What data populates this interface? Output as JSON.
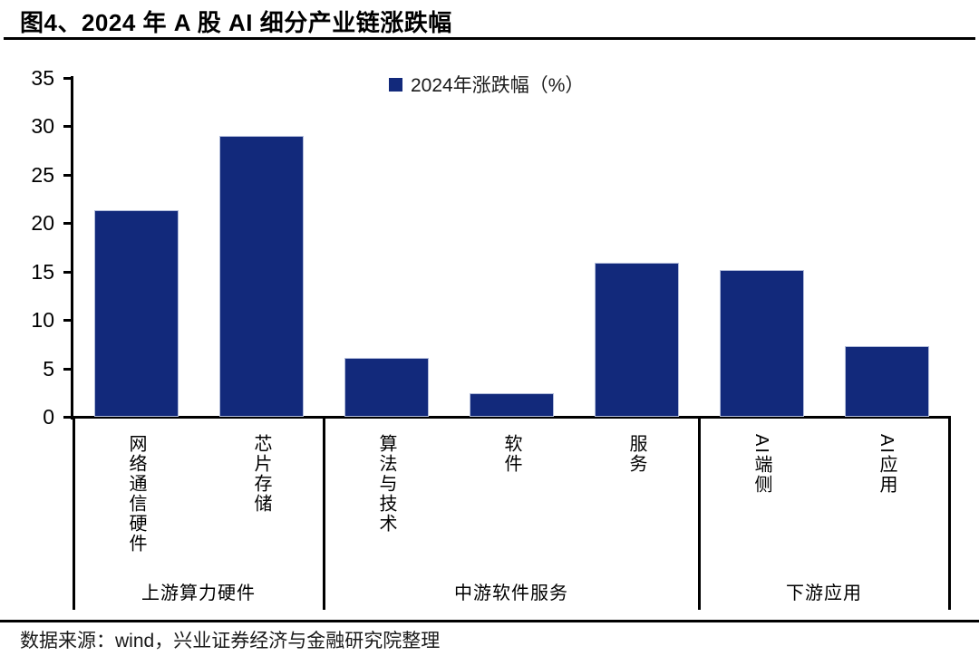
{
  "title": "图4、2024 年 A 股 AI 细分产业链涨跌幅",
  "source_note": "数据来源：wind，兴业证券经济与金融研究院整理",
  "colors": {
    "bar": "#12297B",
    "bar_edge": "#BCC4DF",
    "axis": "#000000",
    "background": "#FFFFFF"
  },
  "chart_data": {
    "type": "bar",
    "title": "图4、2024 年 A 股 AI 细分产业链涨跌幅",
    "legend": [
      {
        "label": "2024年涨跌幅（%）",
        "color": "#12297B"
      }
    ],
    "legend_position": "top-center",
    "categories": [
      "网络通信硬件",
      "芯片存储",
      "算法与技术",
      "软件",
      "服务",
      "AI端侧",
      "AI应用"
    ],
    "values": [
      21.3,
      29.0,
      6.1,
      2.4,
      15.9,
      15.2,
      7.3
    ],
    "groups": [
      {
        "label": "上游算力硬件",
        "count": 2
      },
      {
        "label": "中游软件服务",
        "count": 3
      },
      {
        "label": "下游应用",
        "count": 2
      }
    ],
    "xlabel": "",
    "ylabel": "",
    "ylim": [
      0,
      35
    ],
    "yticks": [
      0,
      5,
      10,
      15,
      20,
      25,
      30,
      35
    ],
    "grid": false
  }
}
